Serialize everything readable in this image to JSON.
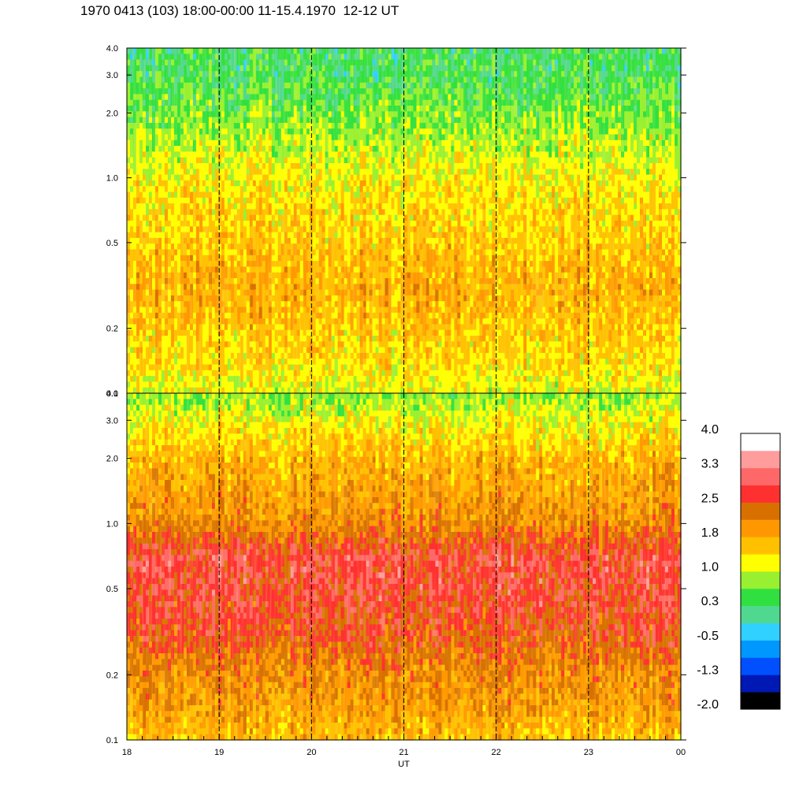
{
  "title": "1970 0413 (103) 18:00-00:00 11-15.4.1970  12-12 UT",
  "chart_data": {
    "type": "heatmap",
    "panels": [
      {
        "name": "",
        "ylabel": "",
        "ylim": [
          0.1,
          4.0
        ],
        "yscale": "log",
        "yticks": [
          "0.1",
          "0.2",
          "0.5",
          "1.0",
          "2.0",
          "3.0",
          "4.0"
        ],
        "ytick_values": [
          0.1,
          0.2,
          0.5,
          1.0,
          2.0,
          3.0,
          4.0
        ],
        "profile": [
          {
            "y": 0.1,
            "level": 1.1
          },
          {
            "y": 0.15,
            "level": 1.45
          },
          {
            "y": 0.2,
            "level": 1.55
          },
          {
            "y": 0.3,
            "level": 1.75
          },
          {
            "y": 0.5,
            "level": 1.55
          },
          {
            "y": 1.0,
            "level": 1.25
          },
          {
            "y": 2.0,
            "level": 0.65
          },
          {
            "y": 3.0,
            "level": 0.35
          },
          {
            "y": 4.0,
            "level": 0.3
          }
        ]
      },
      {
        "name": "",
        "ylabel": "",
        "ylim": [
          0.1,
          4.0
        ],
        "yscale": "log",
        "yticks": [
          "0.1",
          "0.2",
          "0.5",
          "1.0",
          "2.0",
          "3.0",
          "4.0"
        ],
        "ytick_values": [
          0.1,
          0.2,
          0.5,
          1.0,
          2.0,
          3.0,
          4.0
        ],
        "profile": [
          {
            "y": 0.1,
            "level": 1.6
          },
          {
            "y": 0.15,
            "level": 2.0
          },
          {
            "y": 0.2,
            "level": 2.1
          },
          {
            "y": 0.3,
            "level": 2.5
          },
          {
            "y": 0.5,
            "level": 2.75
          },
          {
            "y": 0.7,
            "level": 2.8
          },
          {
            "y": 1.0,
            "level": 2.1
          },
          {
            "y": 2.0,
            "level": 1.7
          },
          {
            "y": 3.0,
            "level": 1.2
          },
          {
            "y": 4.0,
            "level": 0.7
          }
        ]
      }
    ],
    "xlabel": "UT",
    "xlim": [
      18,
      24
    ],
    "xticks": [
      "18",
      "19",
      "20",
      "21",
      "22",
      "23",
      "00"
    ],
    "xtick_values": [
      18,
      19,
      20,
      21,
      22,
      23,
      24
    ],
    "dashed_hour_lines": [
      19,
      20,
      21,
      22,
      23
    ],
    "colorbar": {
      "labels": [
        "4.0",
        "3.3",
        "2.5",
        "1.8",
        "1.0",
        "0.3",
        "-0.5",
        "-1.3",
        "-2.0"
      ],
      "label_values": [
        4.0,
        3.3,
        2.5,
        1.8,
        1.0,
        0.3,
        -0.5,
        -1.3,
        -2.0
      ],
      "range": [
        -2.0,
        4.0
      ],
      "colors": [
        "#000000",
        "#0018b4",
        "#0050ff",
        "#0098ff",
        "#30d0ff",
        "#50d890",
        "#30e040",
        "#98f030",
        "#ffff00",
        "#ffc000",
        "#ff9800",
        "#d87000",
        "#ff3030",
        "#ff6868",
        "#ff9c9c",
        "#ffffff"
      ]
    }
  }
}
